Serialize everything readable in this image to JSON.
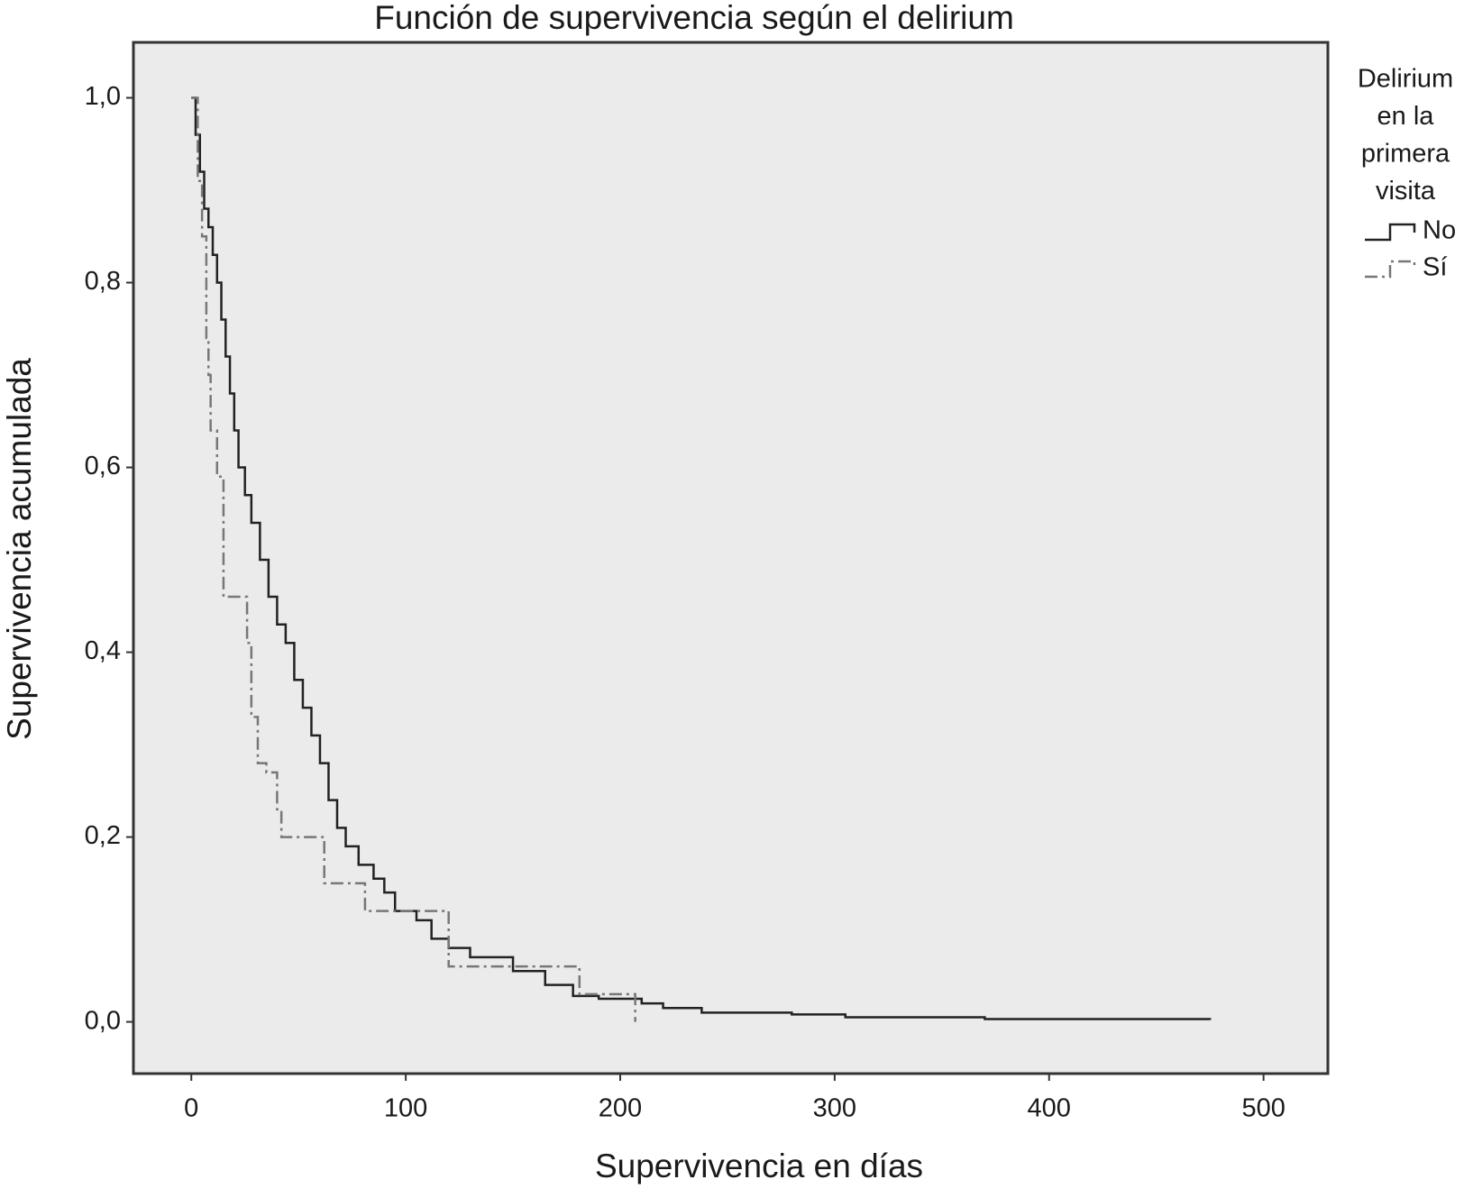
{
  "chart_data": {
    "type": "step",
    "title": "Función de supervivencia según el delirium",
    "x_label": "Supervivencia en días",
    "y_label": "Supervivencia acumulada",
    "legend_title": [
      "Delirium",
      "en la",
      "primera",
      "visita"
    ],
    "legend_position": "right",
    "xlim": [
      -27,
      530
    ],
    "ylim": [
      -0.056,
      1.06
    ],
    "xticks": [
      0,
      100,
      200,
      300,
      400,
      500
    ],
    "yticks": [
      {
        "value": 0,
        "label": "0,0"
      },
      {
        "value": 0.2,
        "label": "0,2"
      },
      {
        "value": 0.4,
        "label": "0,4"
      },
      {
        "value": 0.6,
        "label": "0,6"
      },
      {
        "value": 0.8,
        "label": "0,8"
      },
      {
        "value": 1,
        "label": "1,0"
      }
    ],
    "background": "#ebebeb",
    "series": [
      {
        "name": "No",
        "color": "#222222",
        "dash": "none",
        "x": [
          0,
          2,
          4,
          6,
          8,
          10,
          12,
          14,
          16,
          18,
          20,
          22,
          25,
          28,
          32,
          36,
          40,
          44,
          48,
          52,
          56,
          60,
          64,
          68,
          72,
          78,
          85,
          90,
          95,
          105,
          112,
          120,
          130,
          150,
          165,
          178,
          190,
          210,
          220,
          238,
          280,
          305,
          370,
          475
        ],
        "values": [
          1.0,
          0.96,
          0.92,
          0.88,
          0.86,
          0.83,
          0.8,
          0.76,
          0.72,
          0.68,
          0.64,
          0.6,
          0.57,
          0.54,
          0.5,
          0.46,
          0.43,
          0.41,
          0.37,
          0.34,
          0.31,
          0.28,
          0.24,
          0.21,
          0.19,
          0.17,
          0.155,
          0.14,
          0.12,
          0.11,
          0.09,
          0.08,
          0.07,
          0.055,
          0.04,
          0.028,
          0.025,
          0.02,
          0.015,
          0.01,
          0.008,
          0.005,
          0.003,
          0.002
        ]
      },
      {
        "name": "Sí",
        "color": "#777777",
        "dash": "14,5,3,5",
        "x": [
          0,
          3,
          5,
          7,
          8,
          9,
          12,
          15,
          26,
          28,
          31,
          35,
          40,
          42,
          62,
          81,
          120,
          181,
          207
        ],
        "values": [
          1.0,
          0.91,
          0.85,
          0.74,
          0.7,
          0.64,
          0.59,
          0.46,
          0.41,
          0.33,
          0.28,
          0.27,
          0.23,
          0.2,
          0.15,
          0.12,
          0.06,
          0.03,
          0.0
        ]
      }
    ]
  }
}
